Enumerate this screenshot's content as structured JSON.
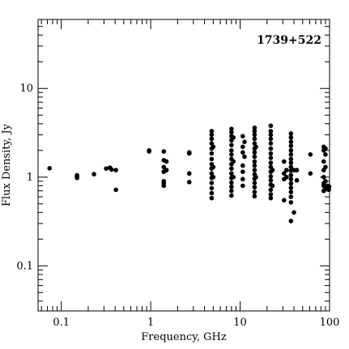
{
  "chart_data": {
    "type": "scatter",
    "title": "",
    "annotation": "1739+522",
    "xlabel": "Frequency, GHz",
    "ylabel": "Flux Density, Jy",
    "x_scale": "log",
    "y_scale": "log",
    "xlim": [
      0.055,
      100
    ],
    "ylim": [
      0.031,
      60
    ],
    "grid": false,
    "x_tick_labels": [
      {
        "value": 0.1,
        "label": "0.1"
      },
      {
        "value": 1,
        "label": "1"
      },
      {
        "value": 10,
        "label": "10"
      },
      {
        "value": 100,
        "label": "100"
      }
    ],
    "y_tick_labels": [
      {
        "value": 0.1,
        "label": "0.1"
      },
      {
        "value": 1,
        "label": "1"
      },
      {
        "value": 10,
        "label": "10"
      }
    ],
    "series": [
      {
        "points": [
          [
            0.074,
            1.26
          ],
          [
            0.15,
            0.98
          ],
          [
            0.15,
            1.02
          ],
          [
            0.15,
            1.05
          ],
          [
            0.232,
            1.08
          ],
          [
            0.318,
            1.25
          ],
          [
            0.35,
            1.28
          ],
          [
            0.365,
            1.22
          ],
          [
            0.408,
            1.2
          ],
          [
            0.408,
            0.72
          ],
          [
            0.96,
            1.95
          ],
          [
            0.96,
            2.0
          ],
          [
            1.4,
            1.95
          ],
          [
            1.4,
            1.55
          ],
          [
            1.4,
            1.3
          ],
          [
            1.4,
            1.15
          ],
          [
            1.4,
            0.9
          ],
          [
            1.4,
            0.85
          ],
          [
            1.4,
            0.8
          ],
          [
            1.5,
            1.5
          ],
          [
            1.5,
            1.2
          ],
          [
            2.7,
            1.9
          ],
          [
            2.7,
            1.85
          ],
          [
            2.7,
            1.1
          ],
          [
            2.7,
            0.88
          ],
          [
            4.8,
            3.3
          ],
          [
            4.8,
            3.0
          ],
          [
            4.8,
            2.7
          ],
          [
            4.8,
            2.4
          ],
          [
            4.8,
            2.1
          ],
          [
            4.8,
            1.85
          ],
          [
            4.8,
            1.6
          ],
          [
            4.8,
            1.4
          ],
          [
            4.8,
            1.25
          ],
          [
            4.8,
            1.1
          ],
          [
            4.8,
            0.98
          ],
          [
            4.8,
            0.86
          ],
          [
            4.8,
            0.75
          ],
          [
            4.8,
            0.66
          ],
          [
            4.8,
            0.58
          ],
          [
            5.0,
            2.2
          ],
          [
            5.0,
            1.3
          ],
          [
            5.0,
            1.0
          ],
          [
            8.0,
            3.5
          ],
          [
            8.0,
            3.2
          ],
          [
            8.0,
            2.9
          ],
          [
            8.0,
            2.6
          ],
          [
            8.0,
            2.3
          ],
          [
            8.0,
            2.0
          ],
          [
            8.0,
            1.8
          ],
          [
            8.0,
            1.6
          ],
          [
            8.0,
            1.4
          ],
          [
            8.0,
            1.25
          ],
          [
            8.0,
            1.1
          ],
          [
            8.0,
            0.98
          ],
          [
            8.0,
            0.87
          ],
          [
            8.0,
            0.78
          ],
          [
            8.0,
            0.7
          ],
          [
            8.0,
            0.62
          ],
          [
            8.4,
            2.8
          ],
          [
            8.4,
            1.5
          ],
          [
            8.4,
            1.0
          ],
          [
            10.7,
            2.9
          ],
          [
            10.7,
            2.2
          ],
          [
            10.7,
            1.9
          ],
          [
            10.7,
            1.35
          ],
          [
            10.7,
            1.15
          ],
          [
            10.7,
            0.95
          ],
          [
            10.7,
            0.8
          ],
          [
            11.2,
            2.5
          ],
          [
            11.2,
            1.7
          ],
          [
            14.5,
            3.6
          ],
          [
            14.5,
            3.3
          ],
          [
            14.5,
            3.0
          ],
          [
            14.5,
            2.7
          ],
          [
            14.5,
            2.4
          ],
          [
            14.5,
            2.1
          ],
          [
            14.5,
            1.9
          ],
          [
            14.5,
            1.7
          ],
          [
            14.5,
            1.5
          ],
          [
            14.5,
            1.35
          ],
          [
            14.5,
            1.2
          ],
          [
            14.5,
            1.07
          ],
          [
            14.5,
            0.96
          ],
          [
            14.5,
            0.86
          ],
          [
            14.5,
            0.77
          ],
          [
            14.5,
            0.68
          ],
          [
            14.5,
            0.61
          ],
          [
            15.0,
            2.2
          ],
          [
            15.0,
            1.0
          ],
          [
            22.0,
            3.8
          ],
          [
            22.0,
            3.3
          ],
          [
            22.0,
            3.0
          ],
          [
            22.0,
            2.7
          ],
          [
            22.0,
            2.4
          ],
          [
            22.0,
            2.1
          ],
          [
            22.0,
            1.85
          ],
          [
            22.0,
            1.65
          ],
          [
            22.0,
            1.45
          ],
          [
            22.0,
            1.3
          ],
          [
            22.0,
            1.15
          ],
          [
            22.0,
            1.02
          ],
          [
            22.0,
            0.92
          ],
          [
            22.0,
            0.82
          ],
          [
            22.0,
            0.72
          ],
          [
            22.0,
            0.64
          ],
          [
            22.0,
            0.58
          ],
          [
            23.0,
            1.2
          ],
          [
            23.0,
            0.8
          ],
          [
            31.0,
            1.5
          ],
          [
            31.0,
            1.1
          ],
          [
            31.0,
            0.95
          ],
          [
            31.0,
            0.55
          ],
          [
            33.0,
            1.2
          ],
          [
            33.0,
            1.0
          ],
          [
            37.0,
            3.1
          ],
          [
            37.0,
            2.8
          ],
          [
            37.0,
            2.5
          ],
          [
            37.0,
            2.25
          ],
          [
            37.0,
            2.0
          ],
          [
            37.0,
            1.8
          ],
          [
            37.0,
            1.6
          ],
          [
            37.0,
            1.45
          ],
          [
            37.0,
            1.3
          ],
          [
            37.0,
            1.18
          ],
          [
            37.0,
            1.05
          ],
          [
            37.0,
            0.95
          ],
          [
            37.0,
            0.85
          ],
          [
            37.0,
            0.76
          ],
          [
            37.0,
            0.68
          ],
          [
            37.0,
            0.6
          ],
          [
            37.0,
            0.52
          ],
          [
            37.0,
            0.32
          ],
          [
            40.0,
            1.2
          ],
          [
            40.0,
            0.4
          ],
          [
            43.0,
            1.2
          ],
          [
            43.0,
            0.92
          ],
          [
            61.0,
            1.8
          ],
          [
            61.0,
            1.1
          ],
          [
            86.0,
            2.2
          ],
          [
            86.0,
            2.0
          ],
          [
            86.0,
            1.5
          ],
          [
            86.0,
            1.2
          ],
          [
            86.0,
            1.0
          ],
          [
            86.0,
            0.85
          ],
          [
            86.0,
            0.8
          ],
          [
            86.0,
            0.7
          ],
          [
            90.0,
            2.1
          ],
          [
            90.0,
            1.8
          ],
          [
            90.0,
            1.3
          ],
          [
            90.0,
            0.9
          ],
          [
            90.0,
            0.75
          ],
          [
            95.0,
            0.8
          ],
          [
            98.0,
            0.72
          ],
          [
            99.0,
            0.78
          ]
        ]
      }
    ]
  }
}
